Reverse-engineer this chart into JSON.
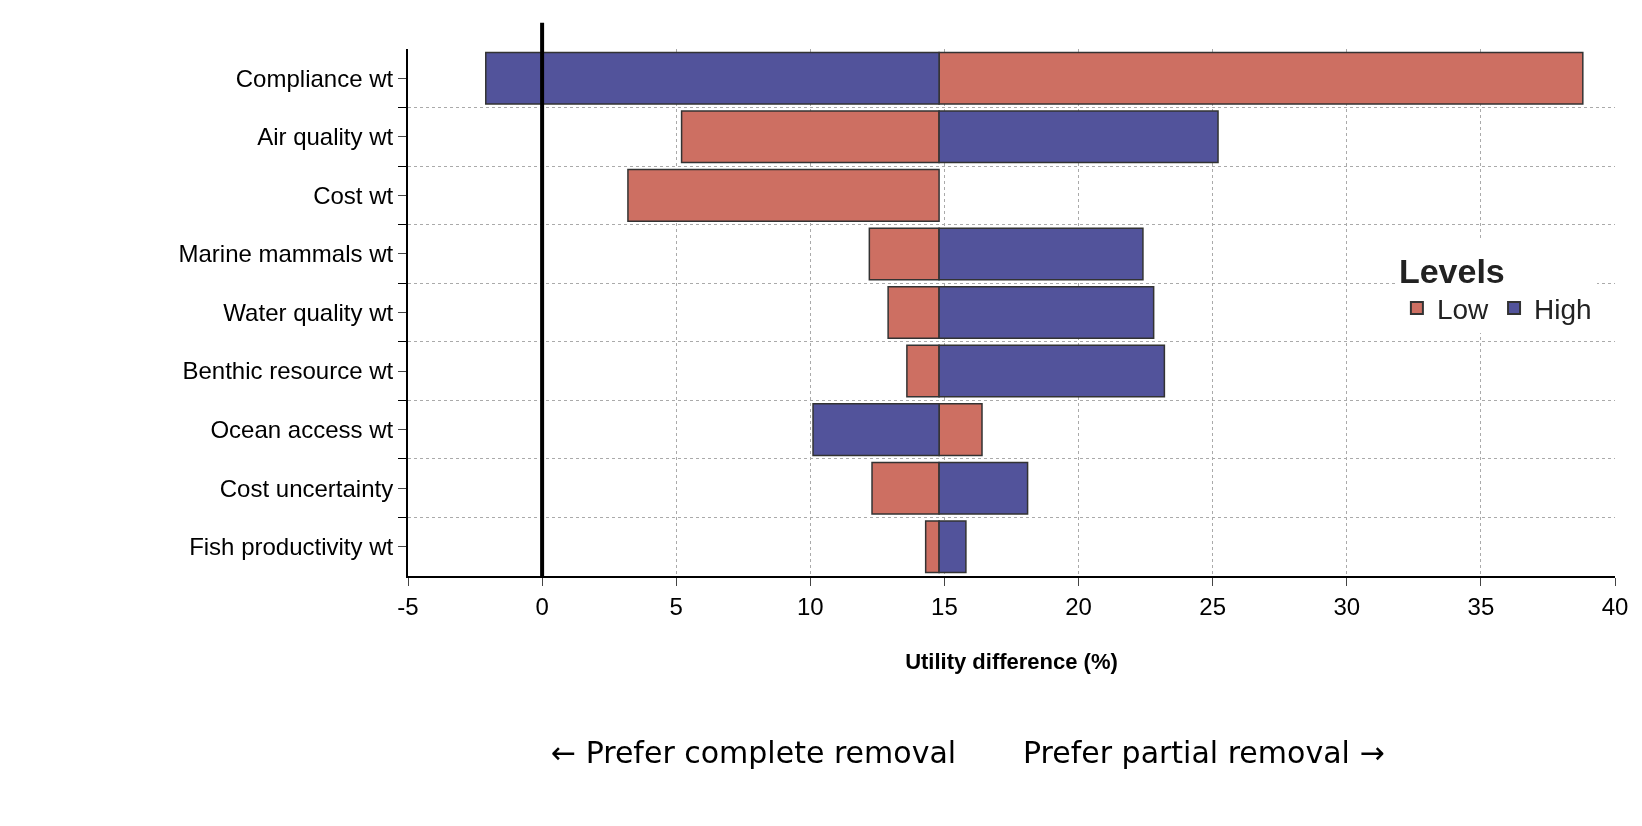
{
  "chart_data": {
    "type": "bar",
    "orientation": "horizontal",
    "xlabel": "Utility difference (%)",
    "legend_title": "Levels",
    "categories": [
      "Compliance wt",
      "Air quality wt",
      "Cost wt",
      "Marine mammals wt",
      "Water quality wt",
      "Benthic resource wt",
      "Ocean access wt",
      "Cost uncertainty",
      "Fish productivity wt"
    ],
    "series": [
      {
        "name": "Low",
        "color": "#cd6f62",
        "base": [
          14.8,
          14.8,
          14.8,
          14.8,
          14.8,
          14.8,
          14.8,
          14.8,
          14.8
        ],
        "values": [
          24.0,
          -9.6,
          -11.6,
          -2.6,
          -1.9,
          -1.2,
          1.6,
          -2.5,
          -0.5
        ]
      },
      {
        "name": "High",
        "color": "#52539b",
        "base": [
          14.8,
          14.8,
          null,
          14.8,
          14.8,
          14.8,
          14.8,
          14.8,
          14.8
        ],
        "values": [
          -16.9,
          10.4,
          null,
          7.6,
          8.0,
          8.4,
          -4.7,
          3.3,
          1.0
        ]
      }
    ],
    "xlim": [
      -5,
      40
    ],
    "xticks": [
      -5,
      0,
      5,
      10,
      15,
      20,
      25,
      30,
      35,
      40
    ],
    "ref_lines": [
      {
        "axis": "x",
        "value": 0,
        "color": "#000000"
      }
    ],
    "grid": true,
    "legend": "right",
    "annotations": [
      "← Prefer complete removal",
      "Prefer partial removal →"
    ]
  }
}
